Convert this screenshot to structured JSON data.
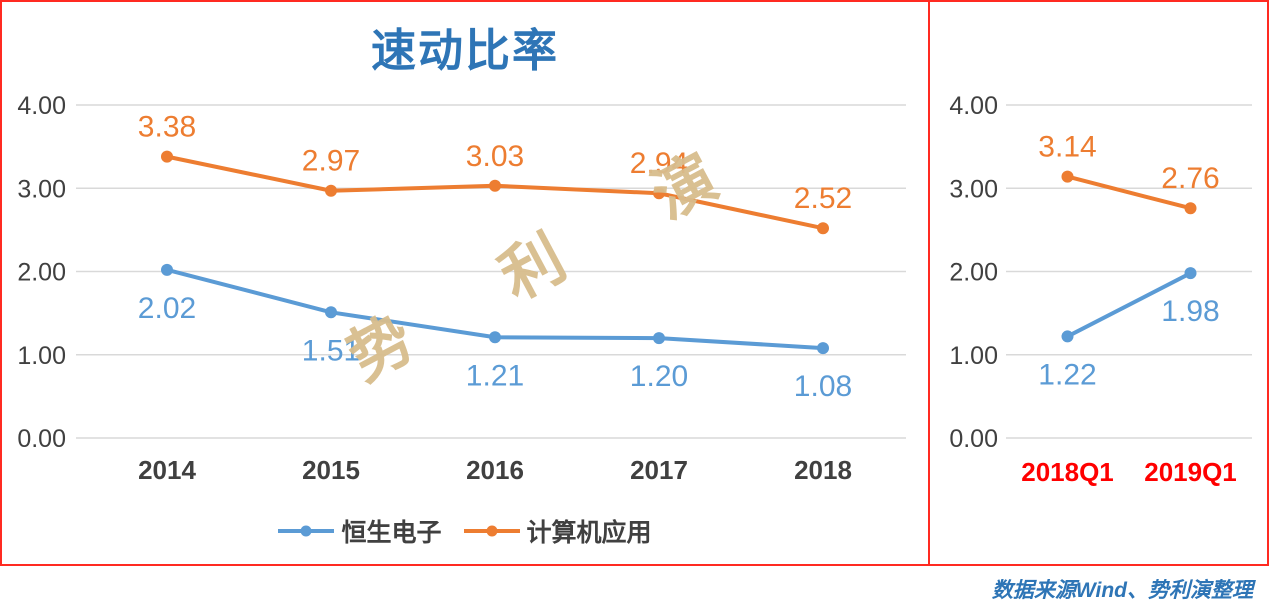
{
  "title": "速动比率",
  "watermark": "势利演",
  "caption": "数据来源Wind、势利演整理",
  "colors": {
    "blue": "#5B9BD5",
    "orange": "#ED7D31",
    "title_blue": "#2E75B6",
    "grid": "#D9D9D9",
    "axis_text": "#404040",
    "quarter_axis_red": "#FF0000",
    "border_red": "#FF2A21",
    "watermark_tan": "#D8BD8D",
    "caption_blue": "#2E75B6"
  },
  "legend": [
    {
      "label": "恒生电子",
      "color": "#5B9BD5"
    },
    {
      "label": "计算机应用",
      "color": "#ED7D31"
    }
  ],
  "chart_data": [
    {
      "id": "annual",
      "type": "line",
      "title": "速动比率",
      "categories": [
        "2014",
        "2015",
        "2016",
        "2017",
        "2018"
      ],
      "series": [
        {
          "name": "恒生电子",
          "color": "#5B9BD5",
          "values": [
            2.02,
            1.51,
            1.21,
            1.2,
            1.08
          ],
          "label_position": "below"
        },
        {
          "name": "计算机应用",
          "color": "#ED7D31",
          "values": [
            3.38,
            2.97,
            3.03,
            2.94,
            2.52
          ],
          "label_position": "above"
        }
      ],
      "ylim": [
        0,
        4
      ],
      "yticks": [
        "0.00",
        "1.00",
        "2.00",
        "3.00",
        "4.00"
      ],
      "grid": true,
      "legend_position": "bottom"
    },
    {
      "id": "quarterly",
      "type": "line",
      "categories": [
        "2018Q1",
        "2019Q1"
      ],
      "series": [
        {
          "name": "恒生电子",
          "color": "#5B9BD5",
          "values": [
            1.22,
            1.98
          ],
          "label_position": "below"
        },
        {
          "name": "计算机应用",
          "color": "#ED7D31",
          "values": [
            3.14,
            2.76
          ],
          "label_position": "above"
        }
      ],
      "ylim": [
        0,
        4
      ],
      "yticks": [
        "0.00",
        "1.00",
        "2.00",
        "3.00",
        "4.00"
      ],
      "grid": true,
      "legend_position": "none"
    }
  ]
}
